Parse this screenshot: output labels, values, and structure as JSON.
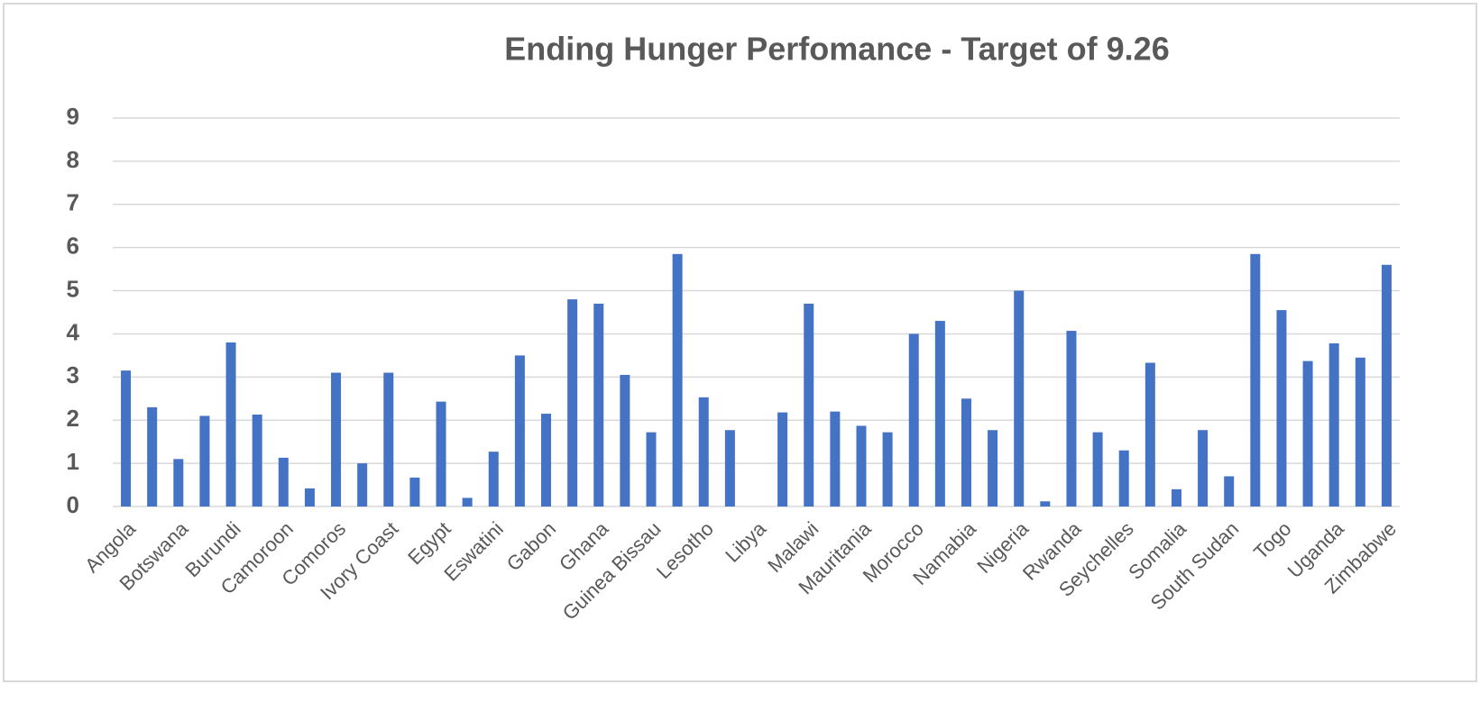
{
  "chart_data": {
    "type": "bar",
    "title": "Ending Hunger Perfomance - Target of 9.26",
    "categories": [
      "Angola",
      null,
      "Botswana",
      null,
      "Burundi",
      null,
      "Camoroon",
      null,
      "Comoros",
      null,
      "Ivory Coast",
      null,
      "Egypt",
      null,
      "Eswatini",
      null,
      "Gabon",
      null,
      "Ghana",
      null,
      "Guinea Bissau",
      null,
      "Lesotho",
      null,
      "Libya",
      null,
      "Malawi",
      null,
      "Mauritania",
      null,
      "Morocco",
      null,
      "Namabia",
      null,
      "Nigeria",
      null,
      "Rwanda",
      null,
      "Seychelles",
      null,
      "Somalia",
      null,
      "South Sudan",
      null,
      "Togo",
      null,
      "Uganda",
      null,
      "Zimbabwe"
    ],
    "values": [
      3.15,
      2.3,
      1.1,
      2.1,
      3.8,
      2.13,
      1.13,
      0.42,
      3.1,
      1.0,
      3.1,
      0.67,
      2.43,
      0.2,
      1.27,
      3.5,
      2.15,
      4.8,
      4.7,
      3.05,
      1.72,
      5.85,
      2.53,
      1.77,
      0,
      2.18,
      4.7,
      2.2,
      1.87,
      1.72,
      4.0,
      4.3,
      2.5,
      1.77,
      5.0,
      0.12,
      4.07,
      1.72,
      1.3,
      3.33,
      0.4,
      1.77,
      0.7,
      5.85,
      4.55,
      3.37,
      3.78,
      3.45,
      5.6
    ],
    "color": "#4472c4",
    "ylim": [
      0,
      9
    ],
    "yticks": [
      0,
      1,
      2,
      3,
      4,
      5,
      6,
      7,
      8,
      9
    ],
    "grid": true
  }
}
